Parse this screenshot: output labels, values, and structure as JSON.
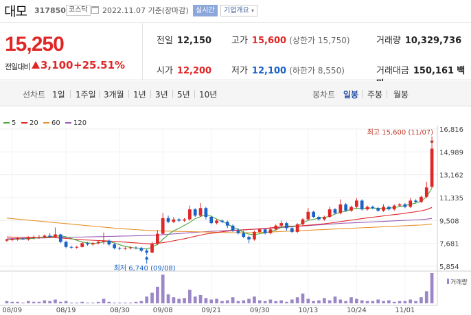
{
  "header": {
    "name": "대모",
    "code": "317850",
    "market": "코스닥",
    "date": "2022.11.07 기준(장마감)",
    "realtime": "실시간",
    "company_info": "기업개요"
  },
  "price": {
    "current": "15,250",
    "change_label": "전일대비",
    "change": "3,100",
    "rate": "+25.51%"
  },
  "stats": {
    "prev_label": "전일",
    "prev": "12,150",
    "high_label": "고가",
    "high": "15,600",
    "high_limit": "(상한가 15,750)",
    "volume_label": "거래량",
    "volume": "10,329,736",
    "open_label": "시가",
    "open": "12,200",
    "low_label": "저가",
    "low": "12,100",
    "low_limit": "(하한가 8,550)",
    "amount_label": "거래대금",
    "amount": "150,161",
    "amount_unit": "백만"
  },
  "periods": {
    "label_line": "선차트",
    "items": [
      "1일",
      "1주일",
      "3개월",
      "1년",
      "3년",
      "5년",
      "10년"
    ],
    "label_candle": "봉차트",
    "candle_items": [
      "일봉",
      "주봉",
      "월봉"
    ],
    "active": "일봉"
  },
  "legend": [
    {
      "label": "5",
      "color": "#4aa63c"
    },
    {
      "label": "20",
      "color": "#e12626"
    },
    {
      "label": "60",
      "color": "#e8922b"
    },
    {
      "label": "120",
      "color": "#9b59b6"
    }
  ],
  "chart_data": {
    "type": "candlestick",
    "y_ticks": [
      "16,816",
      "14,989",
      "13,162",
      "11,335",
      "9,508",
      "7,681",
      "5,854"
    ],
    "ylim": [
      5854,
      16816
    ],
    "x_ticks": [
      "08/09",
      "08/19",
      "08/30",
      "09/08",
      "09/21",
      "09/30",
      "10/13",
      "10/24",
      "11/01"
    ],
    "high_annotation": "최고 15,600 (11/07)",
    "low_annotation": "최저 6,740 (09/08)",
    "volume_label": "거래량",
    "candles": [
      [
        7900,
        8000,
        7800,
        8050
      ],
      [
        7950,
        8050,
        7850,
        8100
      ],
      [
        8000,
        8100,
        7900,
        8200
      ],
      [
        8050,
        8000,
        7950,
        8150
      ],
      [
        8000,
        8150,
        7900,
        8250
      ],
      [
        8100,
        8200,
        8000,
        8300
      ],
      [
        8150,
        8200,
        8050,
        8350
      ],
      [
        8200,
        8300,
        8100,
        8400
      ],
      [
        8300,
        8200,
        8100,
        8500
      ],
      [
        8200,
        8400,
        8100,
        8950
      ],
      [
        8400,
        7800,
        7700,
        8450
      ],
      [
        7800,
        7400,
        7300,
        7900
      ],
      [
        7400,
        7350,
        7250,
        7500
      ],
      [
        7350,
        7400,
        7250,
        7500
      ],
      [
        7400,
        7700,
        7350,
        7800
      ],
      [
        7700,
        7600,
        7500,
        7800
      ],
      [
        7600,
        7700,
        7500,
        7800
      ],
      [
        7700,
        7800,
        7600,
        7900
      ],
      [
        7800,
        7900,
        7600,
        8550
      ],
      [
        7900,
        7600,
        7500,
        8000
      ],
      [
        7600,
        7300,
        7200,
        7700
      ],
      [
        7300,
        7250,
        7150,
        7400
      ],
      [
        7250,
        7300,
        7150,
        7400
      ],
      [
        7300,
        7350,
        7200,
        7450
      ],
      [
        7350,
        7300,
        7200,
        7450
      ],
      [
        7300,
        7100,
        7000,
        7400
      ],
      [
        7100,
        6950,
        6740,
        7200
      ],
      [
        6950,
        7650,
        6900,
        7800
      ],
      [
        7650,
        8450,
        7550,
        8750
      ],
      [
        8450,
        9700,
        8400,
        10100
      ],
      [
        9700,
        9400,
        9300,
        9900
      ],
      [
        9400,
        9600,
        9300,
        9800
      ],
      [
        9600,
        9500,
        9400,
        9700
      ],
      [
        9500,
        9600,
        9400,
        9700
      ],
      [
        9600,
        10400,
        9500,
        10700
      ],
      [
        10400,
        9900,
        9800,
        10500
      ],
      [
        9900,
        10500,
        9800,
        10900
      ],
      [
        10500,
        9800,
        9600,
        10600
      ],
      [
        9800,
        9300,
        9200,
        9900
      ],
      [
        9300,
        9500,
        9200,
        9600
      ],
      [
        9500,
        9400,
        9300,
        9600
      ],
      [
        9400,
        9100,
        8900,
        9500
      ],
      [
        9100,
        8700,
        8600,
        9200
      ],
      [
        8700,
        8500,
        8400,
        8900
      ],
      [
        8500,
        8200,
        8100,
        8700
      ],
      [
        8200,
        8000,
        7700,
        8300
      ],
      [
        8000,
        8600,
        7900,
        8700
      ],
      [
        8600,
        8800,
        8500,
        8900
      ],
      [
        8800,
        8500,
        8400,
        8900
      ],
      [
        8500,
        8800,
        8400,
        9000
      ],
      [
        8800,
        9100,
        8700,
        9200
      ],
      [
        9100,
        9300,
        9000,
        9500
      ],
      [
        9300,
        8900,
        8700,
        9400
      ],
      [
        8900,
        8600,
        8500,
        9000
      ],
      [
        8600,
        9200,
        8500,
        9300
      ],
      [
        9200,
        9600,
        9100,
        9700
      ],
      [
        9600,
        10200,
        9500,
        10500
      ],
      [
        10200,
        9800,
        9700,
        10300
      ],
      [
        9800,
        9600,
        9500,
        9900
      ],
      [
        9600,
        9800,
        9500,
        9900
      ],
      [
        9800,
        10400,
        9700,
        10600
      ],
      [
        10400,
        10100,
        10000,
        10500
      ],
      [
        10100,
        10800,
        10000,
        11200
      ],
      [
        10800,
        10300,
        10200,
        10900
      ],
      [
        10300,
        10600,
        10200,
        10700
      ],
      [
        10600,
        11100,
        10500,
        11300
      ],
      [
        11100,
        10400,
        10300,
        11200
      ],
      [
        10400,
        10600,
        10300,
        10700
      ],
      [
        10600,
        10500,
        10400,
        10700
      ],
      [
        10500,
        10300,
        10200,
        10600
      ],
      [
        10300,
        10600,
        10200,
        10800
      ],
      [
        10600,
        10400,
        10300,
        10700
      ],
      [
        10400,
        10700,
        10300,
        10800
      ],
      [
        10700,
        10800,
        10600,
        10900
      ],
      [
        10800,
        10600,
        10500,
        10900
      ],
      [
        10600,
        11100,
        10500,
        11300
      ],
      [
        11100,
        11000,
        10900,
        11200
      ],
      [
        11000,
        11400,
        10900,
        11500
      ],
      [
        11400,
        12150,
        11300,
        12600
      ],
      [
        12200,
        15250,
        12100,
        15600
      ]
    ],
    "series": [
      {
        "name": "5",
        "values": [
          7950,
          7990,
          8020,
          8040,
          8050,
          8090,
          8140,
          8180,
          8220,
          8260,
          8280,
          8210,
          8070,
          7930,
          7790,
          7720,
          7680,
          7710,
          7800,
          7820,
          7720,
          7570,
          7440,
          7370,
          7300,
          7290,
          7230,
          7380,
          7610,
          8010,
          8380,
          8690,
          8880,
          9130,
          9350,
          9660,
          9820,
          10000,
          9840,
          9630,
          9440,
          9250,
          8980,
          8800,
          8560,
          8420,
          8380,
          8450,
          8530,
          8620,
          8750,
          8970,
          9080,
          9060,
          9080,
          9320,
          9520,
          9600,
          9700,
          9760,
          9840,
          10020,
          10180,
          10250,
          10420,
          10480,
          10440,
          10500,
          10500,
          10480,
          10460,
          10500,
          10540,
          10620,
          10700,
          10800,
          10900,
          11040,
          11410,
          12100
        ]
      },
      {
        "name": "20",
        "values": [
          8200,
          8180,
          8170,
          8160,
          8150,
          8150,
          8140,
          8140,
          8130,
          8130,
          8110,
          8080,
          8040,
          8000,
          7970,
          7950,
          7930,
          7910,
          7890,
          7870,
          7840,
          7810,
          7780,
          7750,
          7720,
          7690,
          7650,
          7650,
          7680,
          7740,
          7810,
          7890,
          7970,
          8050,
          8150,
          8250,
          8340,
          8430,
          8490,
          8550,
          8610,
          8660,
          8700,
          8730,
          8760,
          8790,
          8820,
          8850,
          8880,
          8920,
          8960,
          9000,
          9020,
          9040,
          9060,
          9090,
          9130,
          9170,
          9210,
          9250,
          9300,
          9360,
          9420,
          9480,
          9540,
          9600,
          9660,
          9720,
          9770,
          9820,
          9880,
          9930,
          9980,
          10030,
          10090,
          10150,
          10210,
          10280,
          10380,
          10550
        ]
      },
      {
        "name": "60",
        "values": [
          9700,
          9660,
          9620,
          9580,
          9540,
          9500,
          9460,
          9420,
          9380,
          9340,
          9300,
          9260,
          9220,
          9180,
          9140,
          9100,
          9060,
          9020,
          8980,
          8940,
          8900,
          8870,
          8840,
          8810,
          8780,
          8750,
          8720,
          8700,
          8680,
          8670,
          8660,
          8650,
          8640,
          8630,
          8620,
          8610,
          8600,
          8590,
          8580,
          8570,
          8560,
          8550,
          8540,
          8540,
          8540,
          8540,
          8550,
          8560,
          8570,
          8590,
          8610,
          8630,
          8650,
          8670,
          8690,
          8710,
          8730,
          8750,
          8770,
          8790,
          8810,
          8830,
          8850,
          8870,
          8890,
          8910,
          8930,
          8950,
          8970,
          8990,
          9010,
          9030,
          9050,
          9070,
          9090,
          9110,
          9130,
          9150,
          9180,
          9230
        ]
      },
      {
        "name": "120",
        "values": [
          8050,
          8060,
          8070,
          8080,
          8090,
          8100,
          8110,
          8120,
          8130,
          8140,
          8150,
          8160,
          8170,
          8180,
          8190,
          8200,
          8210,
          8220,
          8230,
          8240,
          8250,
          8260,
          8270,
          8280,
          8290,
          8300,
          8310,
          8330,
          8350,
          8380,
          8410,
          8440,
          8470,
          8500,
          8530,
          8560,
          8590,
          8620,
          8650,
          8670,
          8690,
          8710,
          8730,
          8750,
          8770,
          8790,
          8810,
          8830,
          8860,
          8890,
          8920,
          8950,
          8980,
          9010,
          9040,
          9070,
          9100,
          9130,
          9160,
          9190,
          9220,
          9250,
          9280,
          9300,
          9320,
          9340,
          9360,
          9380,
          9400,
          9420,
          9440,
          9460,
          9480,
          9500,
          9520,
          9540,
          9560,
          9580,
          9620,
          9680
        ]
      }
    ],
    "volumes": [
      3,
      2,
      2,
      1,
      3,
      2,
      2,
      4,
      3,
      5,
      2,
      3,
      1,
      1,
      2,
      1,
      1,
      2,
      6,
      2,
      1,
      1,
      1,
      1,
      2,
      3,
      9,
      14,
      22,
      38,
      12,
      8,
      6,
      7,
      18,
      9,
      11,
      7,
      5,
      6,
      3,
      4,
      8,
      3,
      4,
      6,
      9,
      4,
      3,
      5,
      3,
      4,
      2,
      5,
      8,
      13,
      6,
      3,
      4,
      7,
      4,
      9,
      5,
      3,
      8,
      6,
      4,
      3,
      3,
      5,
      3,
      4,
      2,
      3,
      3,
      5,
      3,
      8,
      16,
      40
    ]
  }
}
